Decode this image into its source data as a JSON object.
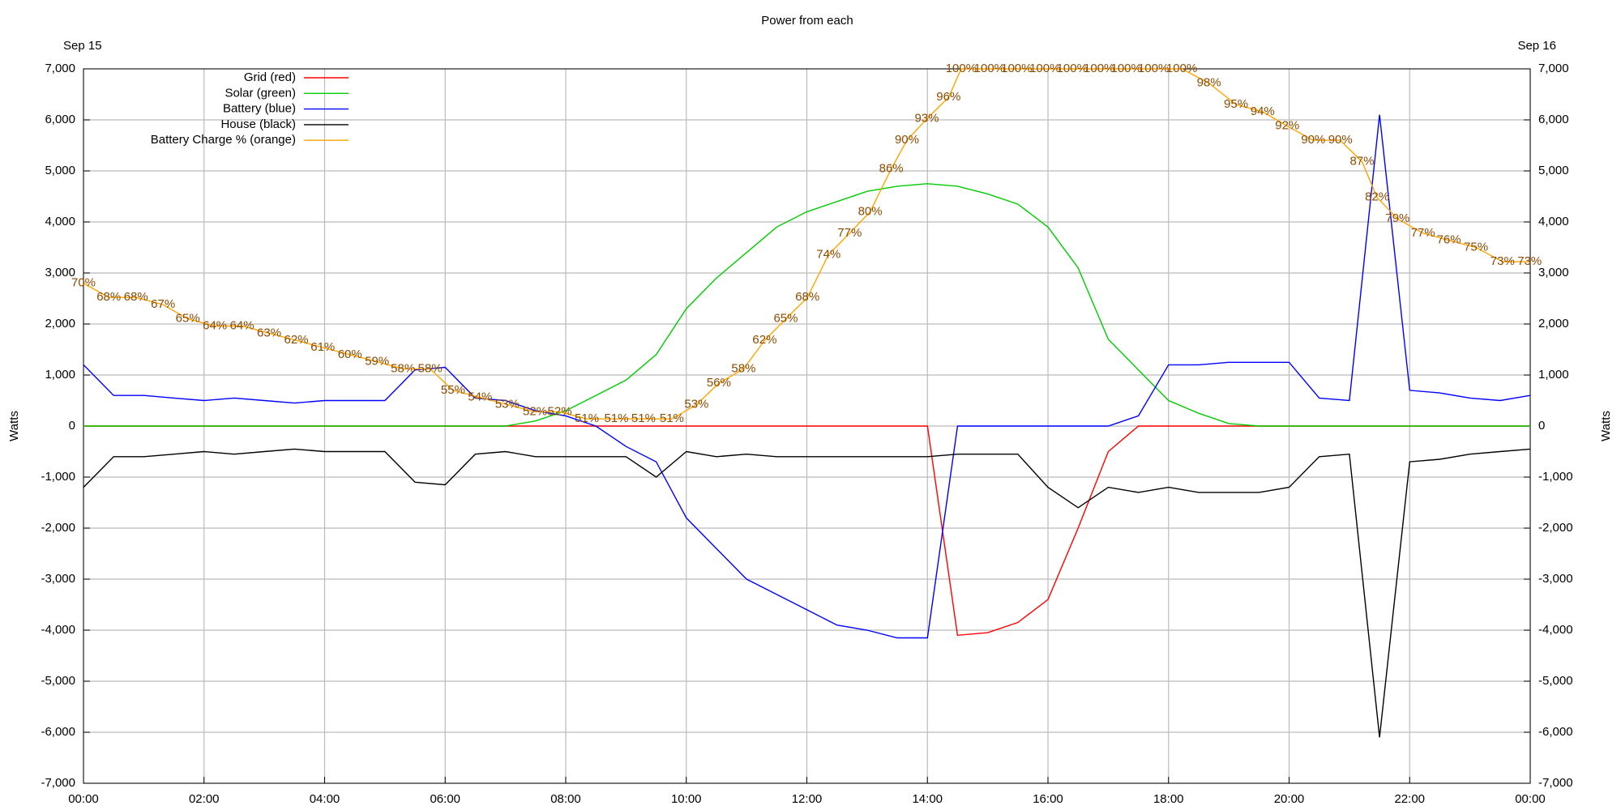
{
  "chart_data": {
    "type": "line",
    "title": "Power from each",
    "annotations": [
      "Sep 15",
      "Sep 16"
    ],
    "ylabel": "Watts",
    "y2label": "Watts",
    "grid": true,
    "legend": "upper left",
    "xlim": [
      0,
      24
    ],
    "xticks": [
      {
        "value": 0,
        "label": "00:00"
      },
      {
        "value": 2,
        "label": "02:00"
      },
      {
        "value": 4,
        "label": "04:00"
      },
      {
        "value": 6,
        "label": "06:00"
      },
      {
        "value": 8,
        "label": "08:00"
      },
      {
        "value": 10,
        "label": "10:00"
      },
      {
        "value": 12,
        "label": "12:00"
      },
      {
        "value": 14,
        "label": "14:00"
      },
      {
        "value": 16,
        "label": "16:00"
      },
      {
        "value": 18,
        "label": "18:00"
      },
      {
        "value": 20,
        "label": "20:00"
      },
      {
        "value": 22,
        "label": "22:00"
      },
      {
        "value": 24,
        "label": "00:00"
      }
    ],
    "ylim": [
      -7000,
      7000
    ],
    "yticks": [
      {
        "value": 7000,
        "label": "7,000"
      },
      {
        "value": 6000,
        "label": "6,000"
      },
      {
        "value": 5000,
        "label": "5,000"
      },
      {
        "value": 4000,
        "label": "4,000"
      },
      {
        "value": 3000,
        "label": "3,000"
      },
      {
        "value": 2000,
        "label": "2,000"
      },
      {
        "value": 1000,
        "label": "1,000"
      },
      0,
      {
        "value": -1000,
        "label": "-1,000"
      },
      {
        "value": -2000,
        "label": "-2,000"
      },
      {
        "value": -3000,
        "label": "-3,000"
      },
      {
        "value": -4000,
        "label": "-4,000"
      },
      {
        "value": -5000,
        "label": "-5,000"
      },
      {
        "value": -6000,
        "label": "-6,000"
      },
      {
        "value": -7000,
        "label": "-7,000"
      }
    ],
    "y2lim": [
      -7000,
      7000
    ],
    "y2ticks": [
      {
        "value": 7000,
        "label": "7,000"
      },
      {
        "value": 6000,
        "label": "6,000"
      },
      {
        "value": 5000,
        "label": "5,000"
      },
      {
        "value": 4000,
        "label": "4,000"
      },
      {
        "value": 3000,
        "label": "3,000"
      },
      {
        "value": 2000,
        "label": "2,000"
      },
      {
        "value": 1000,
        "label": "1,000"
      },
      0,
      {
        "value": -1000,
        "label": "-1,000"
      },
      {
        "value": -2000,
        "label": "-2,000"
      },
      {
        "value": -3000,
        "label": "-3,000"
      },
      {
        "value": -4000,
        "label": "-4,000"
      },
      {
        "value": -5000,
        "label": "-5,000"
      },
      {
        "value": -6000,
        "label": "-6,000"
      },
      {
        "value": -7000,
        "label": "-7,000"
      }
    ],
    "y3lim": [
      0,
      100
    ],
    "x": [
      0,
      0.5,
      1,
      1.5,
      2,
      2.5,
      3,
      3.5,
      4,
      4.5,
      5,
      5.5,
      6,
      6.5,
      7,
      7.5,
      8,
      8.5,
      9,
      9.5,
      10,
      10.5,
      11,
      11.5,
      12,
      12.5,
      13,
      13.5,
      14,
      14.5,
      15,
      15.5,
      16,
      16.5,
      17,
      17.5,
      18,
      18.5,
      19,
      19.5,
      20,
      20.5,
      21,
      21.5,
      22,
      22.5,
      23,
      23.5,
      24
    ],
    "series": [
      {
        "name": "Grid (red)",
        "color": "#ff0000",
        "values": [
          0,
          0,
          0,
          0,
          0,
          0,
          0,
          0,
          0,
          0,
          0,
          0,
          0,
          0,
          0,
          0,
          0,
          0,
          0,
          0,
          0,
          0,
          0,
          0,
          0,
          0,
          0,
          0,
          0,
          -4100,
          -4050,
          -3850,
          -3400,
          -2000,
          -500,
          0,
          0,
          0,
          0,
          0,
          0,
          0,
          0,
          0,
          0,
          0,
          0,
          0,
          0
        ]
      },
      {
        "name": "Solar (green)",
        "color": "#00cc00",
        "values": [
          0,
          0,
          0,
          0,
          0,
          0,
          0,
          0,
          0,
          0,
          0,
          0,
          0,
          0,
          0,
          100,
          300,
          600,
          900,
          1400,
          2300,
          2900,
          3400,
          3900,
          4200,
          4400,
          4600,
          4700,
          4750,
          4700,
          4550,
          4350,
          3900,
          3100,
          1700,
          1100,
          500,
          250,
          50,
          0,
          0,
          0,
          0,
          0,
          0,
          0,
          0,
          0,
          0
        ]
      },
      {
        "name": "Battery (blue)",
        "color": "#0000ff",
        "values": [
          1200,
          600,
          600,
          550,
          500,
          550,
          500,
          450,
          500,
          500,
          500,
          1100,
          1150,
          550,
          500,
          300,
          200,
          0,
          -400,
          -700,
          -1800,
          -2400,
          -3000,
          -3300,
          -3600,
          -3900,
          -4000,
          -4150,
          -4150,
          0,
          0,
          0,
          0,
          0,
          0,
          200,
          1200,
          1200,
          1250,
          1250,
          1250,
          550,
          500,
          6100,
          700,
          650,
          550,
          500,
          600
        ]
      },
      {
        "name": "House (black)",
        "color": "#000000",
        "values": [
          -1200,
          -600,
          -600,
          -550,
          -500,
          -550,
          -500,
          -450,
          -500,
          -500,
          -500,
          -1100,
          -1150,
          -550,
          -500,
          -600,
          -600,
          -600,
          -600,
          -1000,
          -500,
          -600,
          -550,
          -600,
          -600,
          -600,
          -600,
          -600,
          -600,
          -550,
          -550,
          -550,
          -1200,
          -1600,
          -1200,
          -1300,
          -1200,
          -1300,
          -1300,
          -1300,
          -1200,
          -600,
          -550,
          -6100,
          -700,
          -650,
          -550,
          -500,
          -450
        ]
      },
      {
        "name": "Battery Charge % (orange)",
        "color": "#ffa500",
        "axis": "y3",
        "x": [
          0,
          0.42,
          0.87,
          1.32,
          1.73,
          2.18,
          2.63,
          3.08,
          3.53,
          3.97,
          4.42,
          4.87,
          5.3,
          5.75,
          6.13,
          6.58,
          7.03,
          7.49,
          7.9,
          8.35,
          8.84,
          9.29,
          9.76,
          10.17,
          10.54,
          10.95,
          11.3,
          11.65,
          12.01,
          12.36,
          12.71,
          13.05,
          13.4,
          13.66,
          13.99,
          14.35,
          14.56,
          15.03,
          15.48,
          15.95,
          16.4,
          16.85,
          17.3,
          17.75,
          18.22,
          18.67,
          19.12,
          19.56,
          19.97,
          20.4,
          20.85,
          21.21,
          21.46,
          21.8,
          22.22,
          22.65,
          23.1,
          23.54,
          23.99
        ],
        "values": [
          70,
          68,
          68,
          67,
          65,
          64,
          64,
          63,
          62,
          61,
          60,
          59,
          58,
          58,
          55,
          54,
          53,
          52,
          52,
          51,
          51,
          51,
          51,
          53,
          56,
          58,
          62,
          65,
          68,
          74,
          77,
          80,
          86,
          90,
          93,
          96,
          100,
          100,
          100,
          100,
          100,
          100,
          100,
          100,
          100,
          98,
          95,
          94,
          92,
          90,
          90,
          87,
          82,
          79,
          77,
          76,
          75,
          73,
          73
        ],
        "value_labels": [
          "70%",
          "68%",
          "68%",
          "67%",
          "65%",
          "64%",
          "64%",
          "63%",
          "62%",
          "61%",
          "60%",
          "59%",
          "58%",
          "58%",
          "55%",
          "54%",
          "53%",
          "52%",
          "52%",
          "51%",
          "51%",
          "51%",
          "51%",
          "53%",
          "56%",
          "58%",
          "62%",
          "65%",
          "68%",
          "74%",
          "77%",
          "80%",
          "86%",
          "90%",
          "93%",
          "96%",
          "100%",
          "100%",
          "100%",
          "100%",
          "100%",
          "100%",
          "100%",
          "100%",
          "100%",
          "98%",
          "95%",
          "94%",
          "92%",
          "90%",
          "90%",
          "87%",
          "82%",
          "79%",
          "77%",
          "76%",
          "75%",
          "73%",
          "73%"
        ]
      }
    ]
  }
}
